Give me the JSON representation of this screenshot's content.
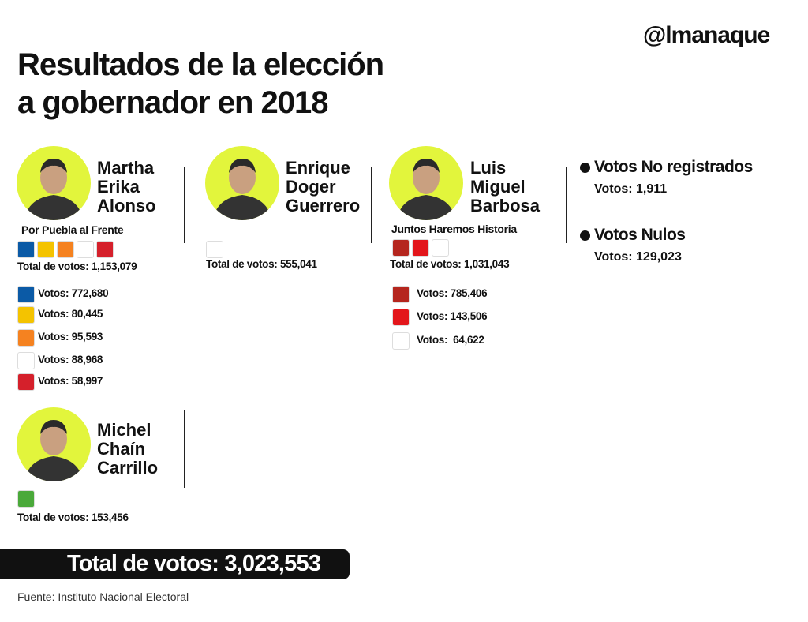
{
  "header": {
    "logo": "@lmanaque",
    "title": [
      "Resultados de la elección",
      "a gobernador en 2018"
    ]
  },
  "candidates": [
    {
      "name": [
        "Martha",
        "Erika",
        "Alonso"
      ],
      "coalition": "Por Puebla al Frente",
      "total": "Total de votos: 1,153,079",
      "party_votes": [
        "Votos: 772,680",
        "Votos: 80,445",
        "Votos: 95,593",
        "Votos: 88,968",
        "Votos: 58,997"
      ]
    },
    {
      "name": [
        "Enrique",
        "Doger",
        "Guerrero"
      ],
      "total": "Total de votos: 555,041"
    },
    {
      "name": [
        "Luis",
        "Miguel",
        "Barbosa"
      ],
      "coalition": "Juntos Haremos Historia",
      "total": "Total de votos: 1,031,043",
      "party_votes": [
        "Votos: 785,406",
        "Votos: 143,506",
        "Votos:  64,622"
      ]
    },
    {
      "name": [
        "Michel",
        "Chaín",
        "Carrillo"
      ],
      "total": "Total de votos: 153,456"
    }
  ],
  "other_votes": [
    {
      "label": "Votos No registrados",
      "votes": "Votos: 1,911"
    },
    {
      "label": "Votos Nulos",
      "votes": "Votos: 129,023"
    }
  ],
  "grand_total": "Total de votos: 3,023,553",
  "source": "Fuente: Instituto Nacional Electoral"
}
